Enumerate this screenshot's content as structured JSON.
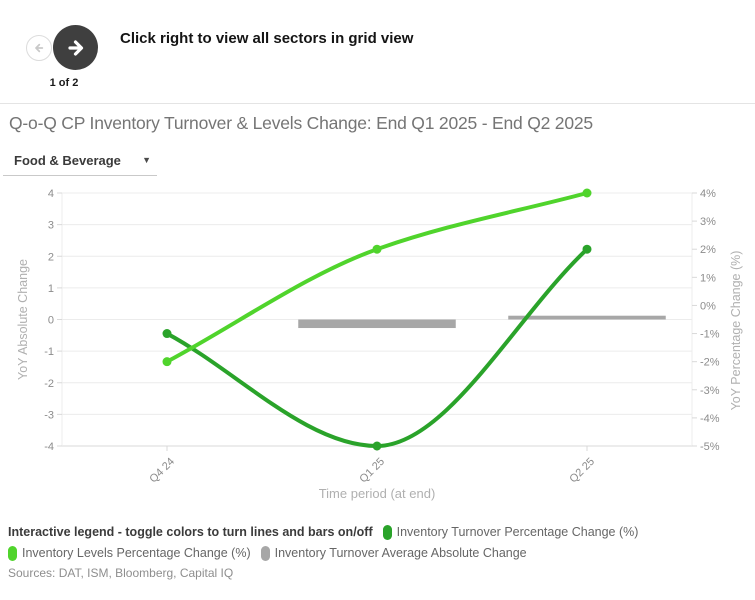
{
  "header": {
    "nav_hint": "Click right to view all sectors in grid view",
    "page_indicator": "1 of 2"
  },
  "title": "Q-o-Q CP Inventory Turnover & Levels Change: End Q1 2025 - End Q2 2025",
  "sector_dropdown": {
    "value": "Food & Beverage"
  },
  "chart_data": {
    "type": "line",
    "subtype": "dual-axis spline + bar",
    "categories": [
      "Q4 24",
      "Q1 25",
      "Q2 25"
    ],
    "series": [
      {
        "name": "Inventory Turnover Percentage Change (%)",
        "type": "spline",
        "axis": "right",
        "color": "#2aa32a",
        "values": [
          -1,
          -5,
          2
        ]
      },
      {
        "name": "Inventory Levels Percentage Change (%)",
        "type": "spline",
        "axis": "right",
        "color": "#50d42c",
        "values": [
          -2,
          2,
          4
        ]
      },
      {
        "name": "Inventory Turnover Average Absolute Change",
        "type": "bar",
        "axis": "left",
        "color": "#a7a7a7",
        "values": [
          0,
          -0.27,
          0.12
        ]
      }
    ],
    "left_axis": {
      "title": "YoY Absolute Change",
      "min": -4,
      "max": 4,
      "tick_step": 1,
      "tick_labels": [
        "4",
        "3",
        "2",
        "1",
        "0",
        "-1",
        "-2",
        "-3",
        "-4"
      ]
    },
    "right_axis": {
      "title": "YoY Percentage Change (%)",
      "min": -5,
      "max": 4,
      "tick_step": 1,
      "tick_labels": [
        "4%",
        "3%",
        "2%",
        "1%",
        "0%",
        "-1%",
        "-2%",
        "-3%",
        "-4%",
        "-5%"
      ]
    },
    "x_axis": {
      "title": "Time period (at end)"
    },
    "grid": "horizontal-left-axis-only",
    "legend_position": "bottom"
  },
  "legend": {
    "heading": "Interactive legend - toggle colors to turn lines and bars on/off",
    "items": [
      {
        "label": "Inventory Turnover Percentage Change (%)",
        "color": "#2aa32a"
      },
      {
        "label": "Inventory Levels Percentage Change (%)",
        "color": "#50d42c"
      },
      {
        "label": "Inventory Turnover Average Absolute Change",
        "color": "#a7a7a7"
      }
    ]
  },
  "sources": "Sources: DAT, ISM, Bloomberg, Capital IQ",
  "colors": {
    "nav_button_dark": "#3f3f3f",
    "nav_button_disabled_border": "#dcdcdc",
    "gridline": "#ececec",
    "axis_line": "#d9d9d9",
    "tick_text": "#8c8c8c",
    "axis_title_text": "#b0b0b0",
    "page_title_text": "#757575"
  }
}
